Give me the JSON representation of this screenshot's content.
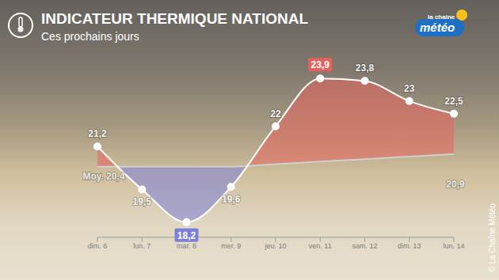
{
  "chart_data": {
    "type": "line",
    "title": "INDICATEUR THERMIQUE NATIONAL",
    "subtitle": "Ces prochains jours",
    "categories": [
      "dim. 6",
      "lun. 7",
      "mar. 8",
      "mer. 9",
      "jeu. 10",
      "ven. 11",
      "sam. 12",
      "dim. 13",
      "lun. 14"
    ],
    "series": [
      {
        "color": "#e8625c",
        "marker": "circle",
        "values": [
          21.2,
          19.5,
          18.2,
          19.6,
          22,
          23.9,
          23.8,
          23,
          22.5
        ],
        "value_labels": [
          "21,2",
          "19,5",
          "18,2",
          "19,6",
          "22",
          "23,9",
          "23,8",
          "23",
          "22,5"
        ]
      },
      {
        "name": "Moy.",
        "color": "#cfcfcf",
        "values": [
          20.4,
          20.4,
          20.4,
          20.4,
          20.5,
          20.6,
          20.7,
          20.8,
          20.9
        ],
        "value_labels": [
          "Moy. 20,4",
          null,
          null,
          null,
          null,
          null,
          null,
          null,
          "20,9"
        ]
      }
    ],
    "ylim": [
      17.6,
      24.5
    ],
    "data_labels": true,
    "tick_labels": "x",
    "grid": false,
    "source": "© La Chaîne Météo",
    "logo": [
      "la chaîne",
      "météo"
    ]
  }
}
